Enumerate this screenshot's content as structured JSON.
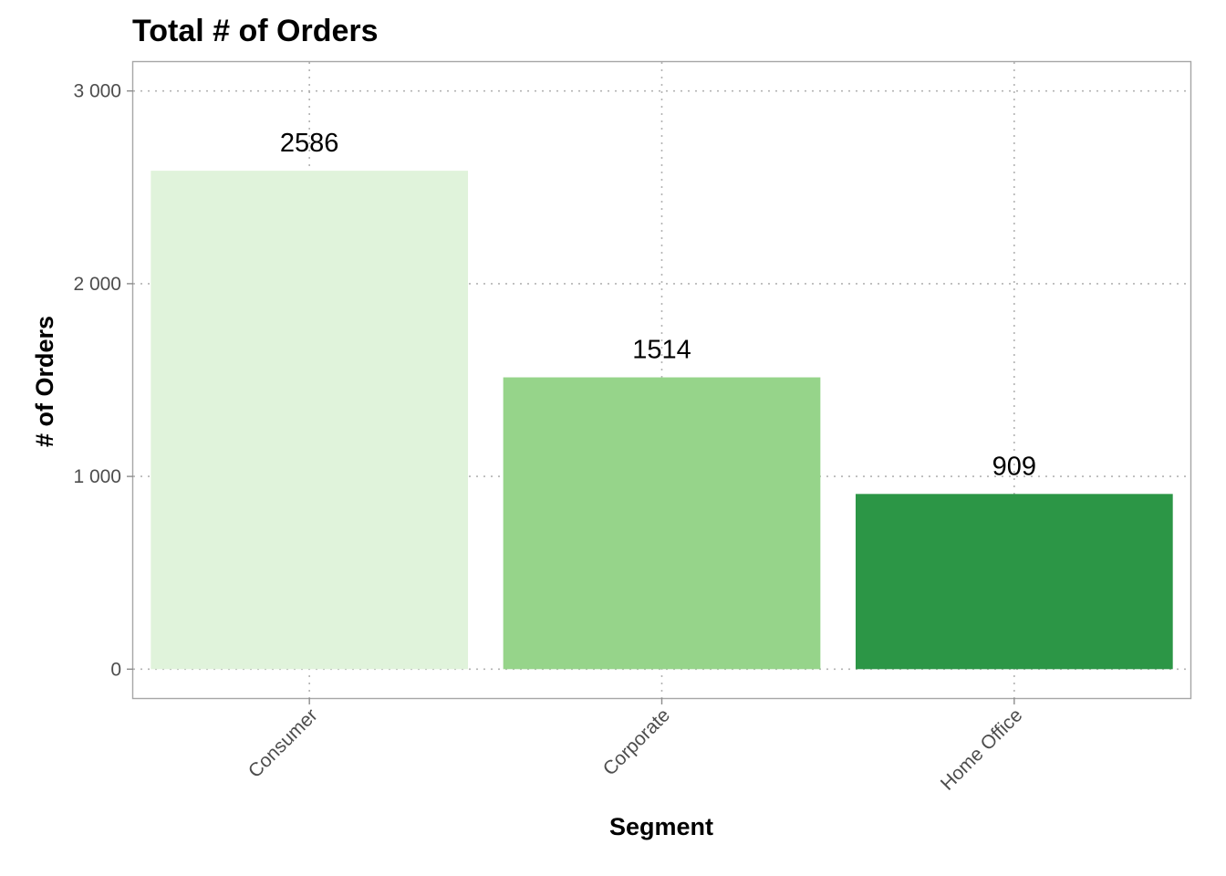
{
  "chart_data": {
    "type": "bar",
    "title": "Total # of Orders",
    "xlabel": "Segment",
    "ylabel": "# of Orders",
    "categories": [
      "Consumer",
      "Corporate",
      "Home Office"
    ],
    "values": [
      2586,
      1514,
      909
    ],
    "data_labels": [
      "2586",
      "1514",
      "909"
    ],
    "colors": [
      "#e0f3db",
      "#96d48a",
      "#2c9646"
    ],
    "ylim": [
      -150,
      3150
    ],
    "y_ticks": [
      0,
      1000,
      2000,
      3000
    ],
    "y_tick_labels": [
      "0",
      "1 000",
      "2 000",
      "3 000"
    ],
    "x_tick_rotation": -45,
    "grid": true,
    "grid_style": "dotted",
    "legend": "none"
  }
}
